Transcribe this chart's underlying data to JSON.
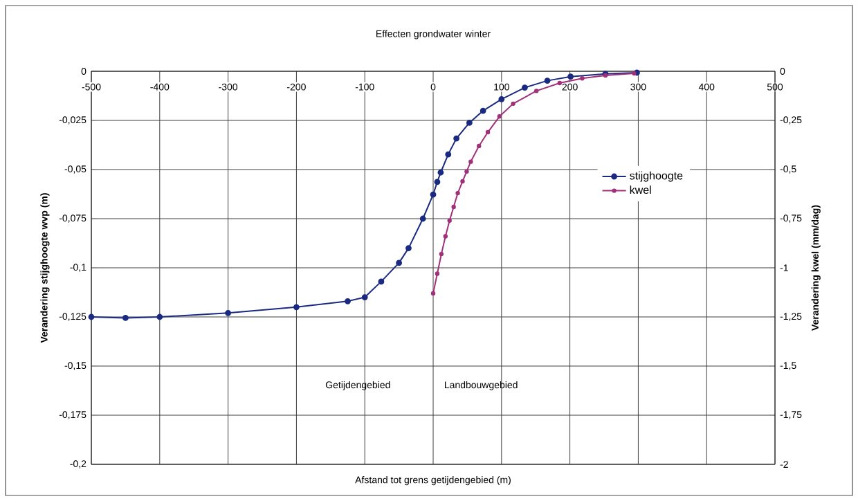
{
  "chart_data": {
    "type": "line",
    "title": "Effecten grondwater winter",
    "xlabel": "Afstand tot grens getijdengebied (m)",
    "ylabel": "Verandering stijghoogte wvp (m)",
    "y2label": "Verandering kwel (mm/dag)",
    "xlim": [
      -500,
      500
    ],
    "xticks": [
      -500,
      -400,
      -300,
      -200,
      -100,
      0,
      100,
      200,
      300,
      400,
      500
    ],
    "ylim": [
      -0.2,
      0
    ],
    "yticks": [
      {
        "value": -0.2,
        "label": "-0,2"
      },
      {
        "value": -0.175,
        "label": "-0,175"
      },
      {
        "value": -0.15,
        "label": "-0,15"
      },
      {
        "value": -0.125,
        "label": "-0,125"
      },
      {
        "value": -0.1,
        "label": "-0,1"
      },
      {
        "value": -0.075,
        "label": "-0,075"
      },
      {
        "value": -0.05,
        "label": "-0,05"
      },
      {
        "value": -0.025,
        "label": "-0,025"
      },
      {
        "value": 0,
        "label": "0"
      }
    ],
    "y2lim": [
      -2,
      0
    ],
    "y2ticks": [
      -2,
      {
        "value": -1.75,
        "label": "-1,75"
      },
      {
        "value": -1.5,
        "label": "-1,5"
      },
      {
        "value": -1.25,
        "label": "-1,25"
      },
      -1,
      {
        "value": -0.75,
        "label": "-0,75"
      },
      {
        "value": -0.5,
        "label": "-0,5"
      },
      {
        "value": -0.25,
        "label": "-0,25"
      },
      0
    ],
    "grid": true,
    "legend": "right",
    "marker": "circle",
    "line_style": "solid",
    "series": [
      {
        "name": "stijghoogte",
        "color": "#1a2a80",
        "x": [
          -500,
          -450,
          -400,
          -300,
          -200,
          -125,
          -100,
          -76,
          -50,
          -36,
          -15,
          0,
          6,
          11,
          22,
          34,
          53,
          73,
          100,
          134,
          167,
          201,
          252,
          298
        ],
        "values": [
          -0.125,
          -0.1255,
          -0.125,
          -0.123,
          -0.12,
          -0.117,
          -0.115,
          -0.107,
          -0.0975,
          -0.09,
          -0.075,
          -0.0627,
          -0.0563,
          -0.0515,
          -0.0423,
          -0.0342,
          -0.0262,
          -0.0201,
          -0.0142,
          -0.0083,
          -0.0048,
          -0.0027,
          -0.0013,
          -0.0007
        ]
      },
      {
        "name": "kwel",
        "color": "#a0307a",
        "axis": "y2",
        "x": [
          0,
          6,
          12,
          18,
          24,
          30,
          36,
          43,
          49,
          55,
          67,
          80,
          97,
          117,
          151,
          185,
          218,
          252,
          294
        ],
        "values": [
          -1.13,
          -1.03,
          -0.93,
          -0.84,
          -0.76,
          -0.69,
          -0.62,
          -0.56,
          -0.51,
          -0.46,
          -0.38,
          -0.31,
          -0.23,
          -0.165,
          -0.1,
          -0.06,
          -0.036,
          -0.021,
          -0.011
        ]
      }
    ],
    "annotations": [
      "Getijdengebied",
      "Landbouwgebied"
    ]
  }
}
